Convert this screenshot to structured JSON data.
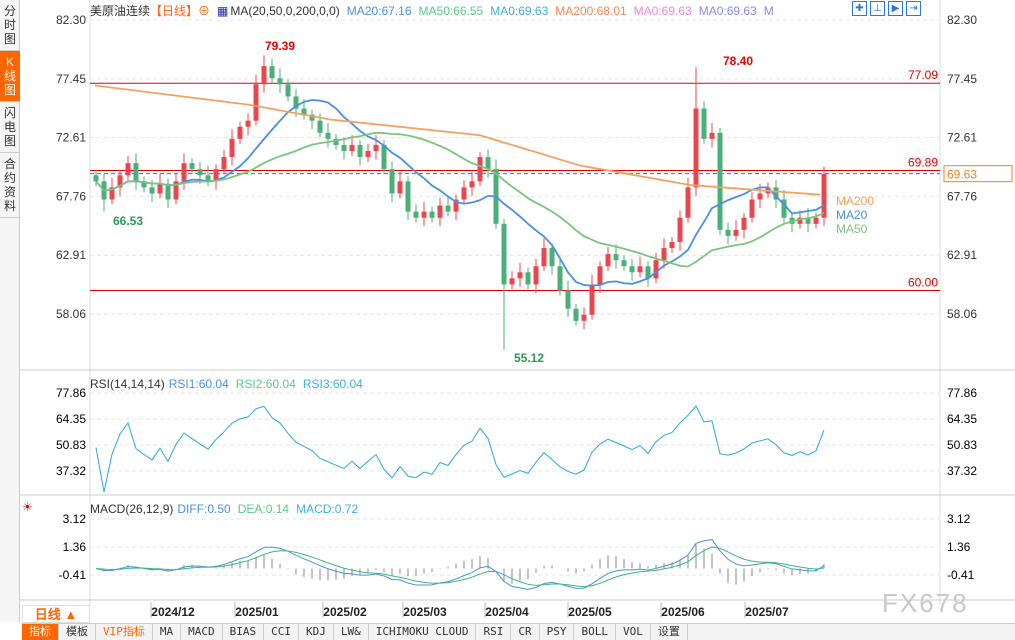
{
  "left_tabs": [
    "分时图",
    "K线图",
    "闪电图",
    "合约资料"
  ],
  "header": {
    "instrument": "美原油连续",
    "period_tag": "【日线】",
    "ma_params": "MA(20,50,0,200,0,0)",
    "ma_items": [
      {
        "text": "MA20:67.16",
        "color": "#4a90e2"
      },
      {
        "text": "MA50:66.55",
        "color": "#5cc98a"
      },
      {
        "text": "MA0:69.63",
        "color": "#3cb0e0"
      },
      {
        "text": "MA200:68.01",
        "color": "#f5884a"
      },
      {
        "text": "MA0:69.63",
        "color": "#e98ad6"
      },
      {
        "text": "MA0:69.63",
        "color": "#8a8af0"
      },
      {
        "text": "M",
        "color": "#8a8af0"
      }
    ]
  },
  "tools": [
    "crosshair-icon",
    "zoom-range-icon",
    "play-icon",
    "exit-icon"
  ],
  "price_axis": [
    "82.30",
    "77.45",
    "72.61",
    "67.76",
    "62.91",
    "58.06"
  ],
  "levels": [
    {
      "value": 77.09,
      "label": "77.09"
    },
    {
      "value": 69.89,
      "label": "69.89"
    },
    {
      "value": 60.0,
      "label": "60.00"
    }
  ],
  "annotations": {
    "high1": "79.39",
    "high2": "78.40",
    "low1": "55.12",
    "low2": "66.53",
    "last_price": "69.63"
  },
  "ma_labels": [
    "MA200",
    "MA20",
    "MA50"
  ],
  "rsi": {
    "title": "RSI(14,14,14)",
    "items": [
      {
        "text": "RSI1:60.04",
        "color": "#4a90e2"
      },
      {
        "text": "RSI2:60.04",
        "color": "#5cc98a"
      },
      {
        "text": "RSI3:60.04",
        "color": "#3cb0e0"
      }
    ],
    "axis": [
      "77.86",
      "64.35",
      "50.83",
      "37.32"
    ]
  },
  "macd": {
    "title": "MACD(26,12,9)",
    "items": [
      {
        "text": "DIFF:0.50",
        "color": "#4a90e2"
      },
      {
        "text": "DEA:0.14",
        "color": "#5cc98a"
      },
      {
        "text": "MACD:0.72",
        "color": "#3cb0e0"
      }
    ],
    "axis": [
      "3.12",
      "1.36",
      "-0.41"
    ]
  },
  "time_axis": [
    "2024/12",
    "2025/01",
    "2025/02",
    "2025/03",
    "2025/04",
    "2025/05",
    "2025/06",
    "2025/07"
  ],
  "period_selector": "日线 ▲",
  "bottom_tabs": [
    "指标",
    "模板",
    "VIP指标",
    "MA",
    "MACD",
    "BIAS",
    "CCI",
    "KDJ",
    "LW&",
    "ICHIMOKU CLOUD",
    "RSI",
    "CR",
    "PSY",
    "BOLL",
    "VOL",
    "设置"
  ],
  "watermark": "FX678",
  "colors": {
    "up": "#e8474f",
    "down": "#4caf7a",
    "level": "#e00000",
    "ma20": "#4a90e2",
    "ma50": "#7cc47c",
    "ma200": "#f5a060",
    "rsi": "#29a8e0",
    "last": "#f08020"
  },
  "chart_data": {
    "type": "candlestick",
    "closes": [
      69.0,
      67.5,
      68.5,
      69.5,
      70.5,
      69,
      68.5,
      68,
      68.8,
      67.5,
      69,
      70.5,
      70,
      69.5,
      69,
      70,
      71,
      72.5,
      73.5,
      74,
      77,
      78.5,
      77.5,
      77,
      76,
      75,
      74.5,
      74,
      73,
      72.5,
      72,
      71.5,
      72,
      71,
      71.5,
      72,
      70,
      68,
      69,
      66.5,
      66,
      66.5,
      66,
      67,
      66.5,
      67.5,
      68.5,
      69,
      71,
      70,
      65.5,
      60.5,
      61,
      61.5,
      60.5,
      62,
      63.5,
      62,
      60,
      58.5,
      57.5,
      58,
      60.5,
      62,
      63,
      62.5,
      62,
      61.5,
      62,
      61,
      62.5,
      63.5,
      64,
      66,
      68.5,
      75,
      72.5,
      73,
      65,
      64.5,
      65,
      66,
      67.5,
      68,
      68.5,
      67.5,
      66,
      65.5,
      66,
      65.5,
      66,
      69.6
    ],
    "ma200": [
      76.9,
      75.3,
      74.1,
      72.8,
      70.3,
      68.7,
      67.9
    ],
    "ylim": [
      58.06,
      82.3
    ]
  }
}
